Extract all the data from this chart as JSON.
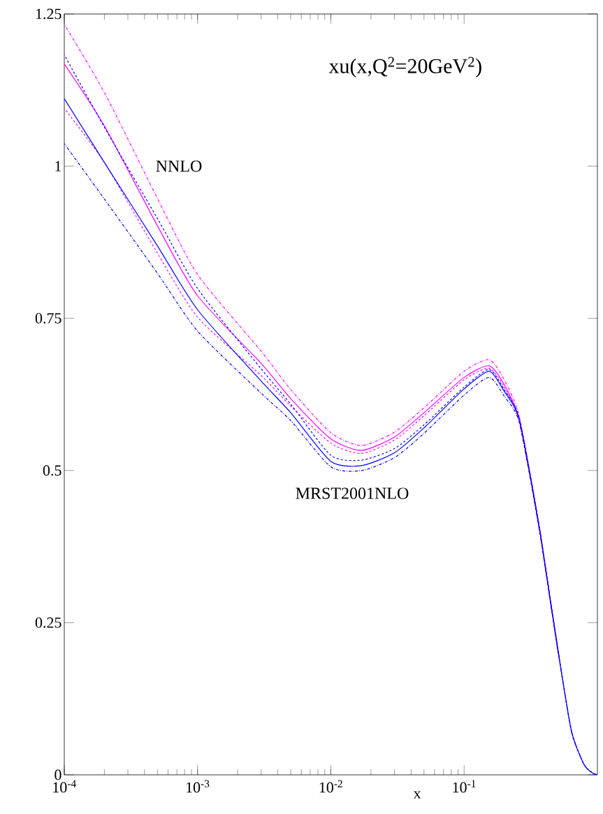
{
  "chart_data": {
    "type": "line",
    "title": "xu(x,Q$^{2}$=20GeV$^{2}$)",
    "xlabel": "x",
    "log": "x",
    "annotations": [
      "NNLO",
      "MRST2001NLO"
    ],
    "x": [
      0.0001,
      0.0002,
      0.0005,
      0.001,
      0.003,
      0.005,
      0.01,
      0.017,
      0.03,
      0.05,
      0.1,
      0.154,
      0.2,
      0.259,
      0.363,
      0.451,
      0.515,
      0.64,
      0.794,
      0.92,
      1
    ],
    "series": [
      {
        "color": "#ff00ff",
        "line_style": "solid",
        "values": [
          1.168,
          1.066,
          0.902,
          0.787,
          0.676,
          0.618,
          0.552,
          0.533,
          0.555,
          0.595,
          0.653,
          0.672,
          0.641,
          0.584,
          0.411,
          0.276,
          0.194,
          null,
          null,
          null,
          null
        ]
      },
      {
        "color": "#ff00ff",
        "line_style": "dash-dot",
        "values": [
          1.233,
          1.121,
          0.947,
          0.822,
          0.696,
          0.633,
          0.562,
          0.541,
          0.563,
          0.603,
          0.663,
          0.682,
          0.649,
          0.589,
          0.414,
          0.278,
          0.196,
          null,
          null,
          null,
          null
        ]
      },
      {
        "color": "#ff00ff",
        "line_style": "dashed",
        "values": [
          1.095,
          1.006,
          0.857,
          0.752,
          0.656,
          0.606,
          0.545,
          0.528,
          0.55,
          0.59,
          0.649,
          0.668,
          0.637,
          0.581,
          0.409,
          0.274,
          0.193,
          null,
          null,
          null,
          null
        ]
      },
      {
        "color": "#0000ff",
        "line_style": "solid",
        "values": [
          1.111,
          1.006,
          0.869,
          0.764,
          0.647,
          0.595,
          0.515,
          0.508,
          0.529,
          0.57,
          0.634,
          0.663,
          0.63,
          0.584,
          0.411,
          0.276,
          0.194,
          0.071,
          0.017,
          0.003,
          0
        ]
      },
      {
        "color": "#0000ff",
        "line_style": "dashed",
        "values": [
          1.183,
          1.064,
          0.914,
          0.799,
          0.667,
          0.609,
          0.525,
          0.517,
          0.536,
          0.575,
          0.637,
          0.666,
          0.633,
          0.586,
          0.413,
          0.277,
          0.195,
          0.072,
          0.017,
          0.003,
          0
        ]
      },
      {
        "color": "#0000ff",
        "line_style": "dash-dot",
        "values": [
          1.037,
          0.946,
          0.824,
          0.729,
          0.627,
          0.582,
          0.506,
          0.5,
          0.521,
          0.561,
          0.624,
          0.653,
          0.622,
          0.579,
          0.408,
          0.274,
          0.192,
          0.07,
          0.017,
          0.003,
          0
        ]
      }
    ],
    "xlim": [
      0.0001,
      1
    ],
    "ylim": [
      0,
      1.25
    ],
    "xticks": [
      {
        "value": 0.0001,
        "label": "10$^{-4}$"
      },
      {
        "value": 0.001,
        "label": "10$^{-3}$"
      },
      {
        "value": 0.01,
        "label": "10$^{-2}$"
      },
      {
        "value": 0.1,
        "label": "10$^{-1}$"
      }
    ],
    "yticks": [
      0,
      0.25,
      0.5,
      0.75,
      1,
      1.25
    ]
  }
}
